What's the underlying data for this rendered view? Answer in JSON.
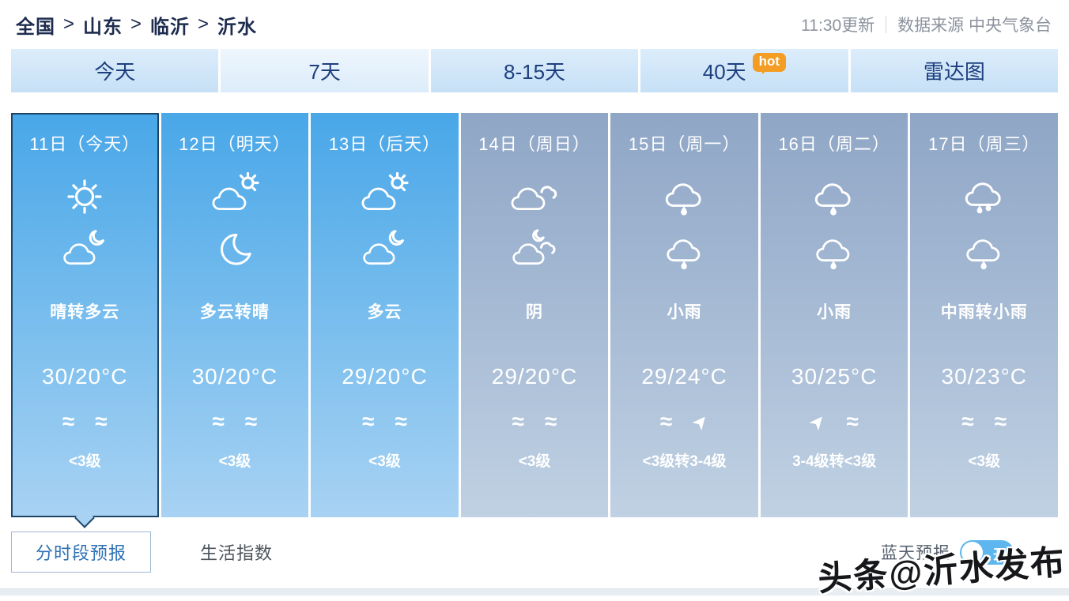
{
  "breadcrumb": {
    "items": [
      "全国",
      "山东",
      "临沂",
      "沂水"
    ],
    "separator": ">"
  },
  "header_right": {
    "updated": "11:30更新",
    "source": "数据来源 中央气象台"
  },
  "tabs": [
    {
      "label": "今天",
      "active": false
    },
    {
      "label": "7天",
      "active": true
    },
    {
      "label": "8-15天",
      "active": false
    },
    {
      "label": "40天",
      "active": false,
      "badge": "hot"
    },
    {
      "label": "雷达图",
      "active": false
    }
  ],
  "days": [
    {
      "date": "11日（今天）",
      "day_icon": "sun",
      "night_icon": "cloud-moon",
      "condition": "晴转多云",
      "temp": "30/20°C",
      "wind_icons": [
        "breeze",
        "breeze"
      ],
      "wind_level": "<3级",
      "theme": "blue",
      "selected": true
    },
    {
      "date": "12日（明天）",
      "day_icon": "cloud-sun",
      "night_icon": "moon",
      "condition": "多云转晴",
      "temp": "30/20°C",
      "wind_icons": [
        "breeze",
        "breeze"
      ],
      "wind_level": "<3级",
      "theme": "blue",
      "selected": false
    },
    {
      "date": "13日（后天）",
      "day_icon": "cloud-sun",
      "night_icon": "cloud-moon",
      "condition": "多云",
      "temp": "29/20°C",
      "wind_icons": [
        "breeze",
        "breeze"
      ],
      "wind_level": "<3级",
      "theme": "blue",
      "selected": false
    },
    {
      "date": "14日（周日）",
      "day_icon": "overcast",
      "night_icon": "overcast-moon",
      "condition": "阴",
      "temp": "29/20°C",
      "wind_icons": [
        "breeze",
        "breeze"
      ],
      "wind_level": "<3级",
      "theme": "gray",
      "selected": false
    },
    {
      "date": "15日（周一）",
      "day_icon": "rain-1",
      "night_icon": "rain-1",
      "condition": "小雨",
      "temp": "29/24°C",
      "wind_icons": [
        "breeze",
        "arrow"
      ],
      "wind_level": "<3级转3-4级",
      "theme": "gray",
      "selected": false
    },
    {
      "date": "16日（周二）",
      "day_icon": "rain-1",
      "night_icon": "rain-1",
      "condition": "小雨",
      "temp": "30/25°C",
      "wind_icons": [
        "arrow",
        "breeze"
      ],
      "wind_level": "3-4级转<3级",
      "theme": "gray",
      "selected": false
    },
    {
      "date": "17日（周三）",
      "day_icon": "rain-2",
      "night_icon": "rain-1",
      "condition": "中雨转小雨",
      "temp": "30/23°C",
      "wind_icons": [
        "breeze",
        "breeze"
      ],
      "wind_level": "<3级",
      "theme": "gray",
      "selected": false
    }
  ],
  "footer": {
    "tabs": [
      {
        "label": "分时段预报",
        "active": true
      },
      {
        "label": "生活指数",
        "active": false
      }
    ],
    "blue_sky_label": "蓝天预报",
    "toggle_on_label": "开"
  },
  "watermark": "头条@沂水发布",
  "colors": {
    "selected_border": "#1d4568",
    "blue_column_top": "#49a7e8",
    "blue_column_bottom": "#a8d2f3",
    "gray_column_top": "#8fa6c6",
    "gray_column_bottom": "#c0d1e3",
    "tab_background": "#c6e0f6",
    "hot_badge": "#f49d25",
    "toggle_on": "#5db6ee",
    "link_blue": "#2e72b4"
  }
}
